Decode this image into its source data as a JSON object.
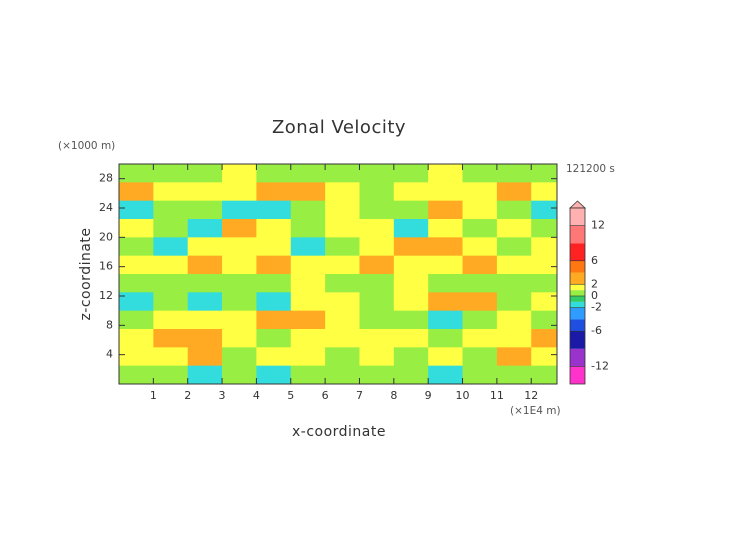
{
  "chart_data": {
    "type": "heatmap",
    "title": "Zonal Velocity",
    "x_label": "x-coordinate",
    "y_label": "z-coordinate",
    "x_unit": "(×1E4 m)",
    "y_unit": "(×1000 m)",
    "time_label": "121200 s",
    "xlim": [
      0,
      12.75
    ],
    "ylim": [
      0,
      30
    ],
    "xticks": [
      1,
      2,
      3,
      4,
      5,
      6,
      7,
      8,
      9,
      10,
      11,
      12
    ],
    "yticks": [
      4,
      8,
      12,
      16,
      20,
      24,
      28
    ],
    "xbins": [
      0,
      1,
      2,
      3,
      4,
      5,
      6,
      7,
      8,
      9,
      10,
      11,
      12,
      12.75
    ],
    "ybins": [
      30,
      27.5,
      25,
      22.5,
      20,
      17.5,
      15,
      12.5,
      10,
      7.5,
      5,
      2.5,
      0
    ],
    "values": [
      [
        0.5,
        0.5,
        0.5,
        1.5,
        0.5,
        0.5,
        0.5,
        0.5,
        0.5,
        1.5,
        0.5,
        0.5,
        0.5
      ],
      [
        3,
        1.5,
        1.5,
        1.5,
        3,
        3,
        1.5,
        0.5,
        1.5,
        1.5,
        1.5,
        3,
        1.5
      ],
      [
        -1.5,
        0.5,
        0.5,
        -1.5,
        -1.5,
        0.5,
        1.5,
        0.5,
        0.5,
        3,
        1.5,
        0.5,
        -1.5
      ],
      [
        1.5,
        0.5,
        -1.5,
        3,
        1.5,
        0.5,
        1.5,
        1.5,
        -1.5,
        1.5,
        0.5,
        1.5,
        0.5
      ],
      [
        0.5,
        -1.5,
        1.5,
        1.5,
        1.5,
        -1.5,
        0.5,
        1.5,
        3,
        3,
        1.5,
        0.5,
        1.5
      ],
      [
        1.5,
        1.5,
        3,
        1.5,
        3,
        1.5,
        1.5,
        3,
        1.5,
        1.5,
        3,
        1.5,
        1.5
      ],
      [
        0.5,
        0.5,
        0.5,
        0.5,
        0.5,
        1.5,
        0.5,
        0.5,
        1.5,
        0.5,
        0.5,
        0.5,
        0.5
      ],
      [
        -1.5,
        0.5,
        -1.5,
        0.5,
        -1.5,
        1.5,
        1.5,
        0.5,
        1.5,
        3,
        3,
        0.5,
        1.5
      ],
      [
        0.5,
        1.5,
        1.5,
        1.5,
        3,
        3,
        1.5,
        0.5,
        0.5,
        -1.5,
        0.5,
        1.5,
        0.5
      ],
      [
        1.5,
        3,
        3,
        1.5,
        0.5,
        1.5,
        1.5,
        1.5,
        1.5,
        0.5,
        1.5,
        1.5,
        3
      ],
      [
        1.5,
        1.5,
        3,
        0.5,
        1.5,
        1.5,
        0.5,
        1.5,
        0.5,
        1.5,
        0.5,
        3,
        1.5
      ],
      [
        0.5,
        0.5,
        -1.5,
        0.5,
        -1.5,
        0.5,
        0.5,
        0.5,
        0.5,
        -1.5,
        0.5,
        0.5,
        0.5
      ]
    ],
    "colorbar": {
      "lim": [
        -15,
        15
      ],
      "ticks": [
        12,
        6,
        2,
        0,
        -2,
        -6,
        -12
      ],
      "bins": [
        -15,
        -12,
        -9,
        -6,
        -4,
        -2,
        -1,
        0,
        1,
        2,
        4,
        6,
        9,
        12,
        15
      ],
      "colors": [
        "#ff33cc",
        "#9933cc",
        "#1a1aa6",
        "#1f4fe0",
        "#2f9cff",
        "#33dddd",
        "#33cc66",
        "#99ee44",
        "#ffff44",
        "#ffaa22",
        "#ff7711",
        "#ff2222",
        "#ff7777",
        "#ffb0b0"
      ]
    }
  }
}
